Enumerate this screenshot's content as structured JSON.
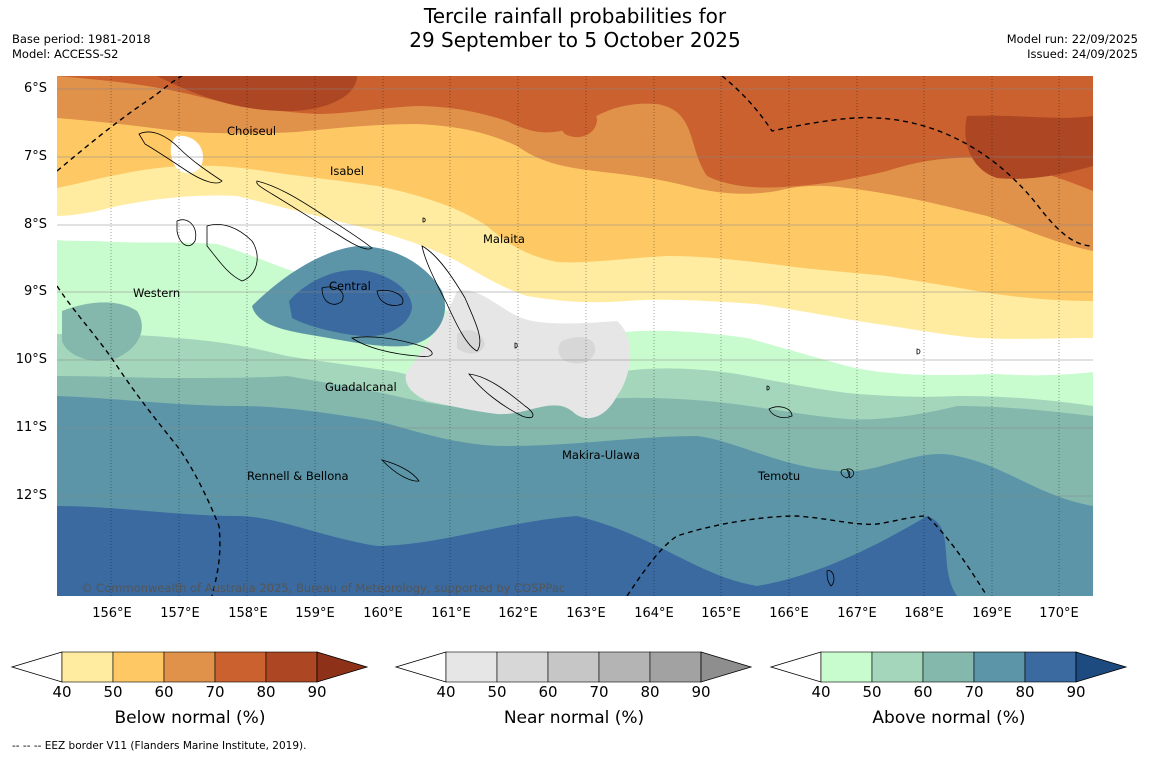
{
  "header": {
    "title_line1": "Tercile rainfall probabilities for",
    "title_line2": "29 September to 5 October 2025",
    "base_period": "Base period: 1981-2018",
    "model": "Model: ACCESS-S2",
    "model_run": "Model run: 22/09/2025",
    "issued": "Issued: 24/09/2025"
  },
  "map": {
    "lat_labels": [
      "6°S",
      "7°S",
      "8°S",
      "9°S",
      "10°S",
      "11°S",
      "12°S"
    ],
    "lon_labels": [
      "156°E",
      "157°E",
      "158°E",
      "159°E",
      "160°E",
      "161°E",
      "162°E",
      "163°E",
      "164°E",
      "165°E",
      "166°E",
      "167°E",
      "168°E",
      "169°E",
      "170°E"
    ],
    "places": [
      "Choiseul",
      "Isabel",
      "Malaita",
      "Western",
      "Central",
      "Guadalcanal",
      "Makira-Ulawa",
      "Rennell & Bellona",
      "Temotu"
    ],
    "copyright": "© Commonwealth of Australia 2025, Bureau of Meteorology, supported by COSPPac"
  },
  "legends": [
    {
      "title": "Below normal (%)",
      "ticks": [
        "40",
        "50",
        "60",
        "70",
        "80",
        "90"
      ],
      "colors": [
        "#ffeca0",
        "#fec965",
        "#e0914a",
        "#ca612f",
        "#ad4623",
        "#8d3218"
      ]
    },
    {
      "title": "Near normal (%)",
      "ticks": [
        "40",
        "50",
        "60",
        "70",
        "80",
        "90"
      ],
      "colors": [
        "#e6e6e6",
        "#d7d7d7",
        "#c6c6c6",
        "#b4b4b4",
        "#a2a2a2",
        "#8e8e8e"
      ]
    },
    {
      "title": "Above normal (%)",
      "ticks": [
        "40",
        "50",
        "60",
        "70",
        "80",
        "90"
      ],
      "colors": [
        "#c8fbcd",
        "#a3d6bb",
        "#84b8ad",
        "#5c95a8",
        "#3a6aa0",
        "#1d4b80"
      ]
    }
  ],
  "footer": "--  --  -- EEZ border V11 (Flanders Marine Institute, 2019)."
}
